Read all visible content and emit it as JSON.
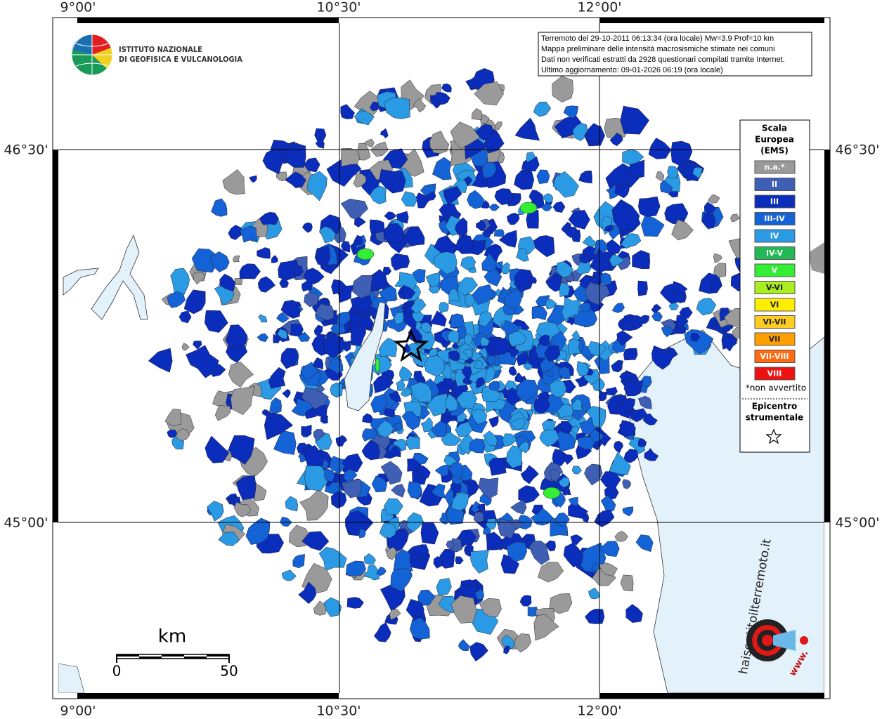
{
  "map": {
    "lon_labels": [
      "9°00'",
      "10°30'",
      "12°00'"
    ],
    "lat_labels": [
      "46°30'",
      "45°00'"
    ],
    "institute": [
      "ISTITUTO NAZIONALE",
      "DI GEOFISICA E VULCANOLOGIA"
    ],
    "info": [
      "Terremoto del 29-10-2011 06:13:34 (ora locale) Mw=3.9 Prof=10 km",
      "Mappa preliminare delle intensità macrosismiche stimate nei comuni",
      "Dati non verificati estratti da 2928 questionari compilati tramite Internet.",
      "Ultimo aggiornamento: 09-01-2026 06:19 (ora locale)"
    ],
    "legend": {
      "title": [
        "Scala",
        "Europea",
        "(EMS)"
      ],
      "items": [
        {
          "label": "n.a.*",
          "color": "#9a9a9a"
        },
        {
          "label": "II",
          "color": "#3f5fb5"
        },
        {
          "label": "III",
          "color": "#0a2dbb"
        },
        {
          "label": "III-IV",
          "color": "#1463d6"
        },
        {
          "label": "IV",
          "color": "#2a9ae4"
        },
        {
          "label": "IV-V",
          "color": "#22b855"
        },
        {
          "label": "V",
          "color": "#33ee33"
        },
        {
          "label": "V-VI",
          "color": "#aaee22"
        },
        {
          "label": "VI",
          "color": "#ffee00"
        },
        {
          "label": "VI-VII",
          "color": "#ffcc22"
        },
        {
          "label": "VII",
          "color": "#ffa000"
        },
        {
          "label": "VII-VIII",
          "color": "#ff6a10"
        },
        {
          "label": "VIII",
          "color": "#ee1111"
        }
      ],
      "note": "*non avvertito",
      "epicenter": [
        "Epicentro",
        "strumentale"
      ]
    },
    "scale": {
      "unit": "km",
      "ticks": [
        0,
        50
      ]
    },
    "site": {
      "prefix": "www.",
      "name": "haisentitoilterremoto.it"
    }
  }
}
